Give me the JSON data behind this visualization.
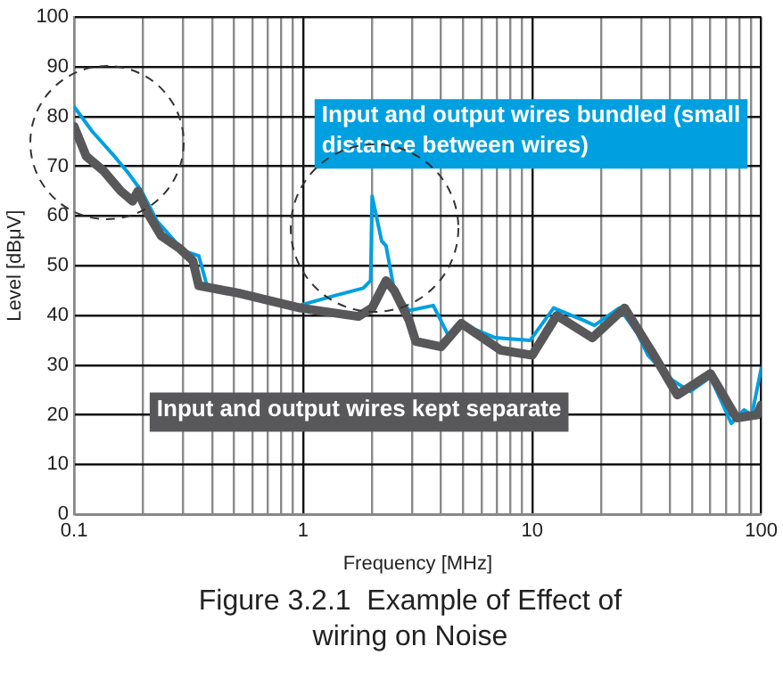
{
  "chart_data": {
    "type": "line",
    "title": "Figure 3.2.1  Example of Effect of wiring on Noise",
    "xlabel": "Frequency [MHz]",
    "ylabel": "Level [dBμV]",
    "log": "x",
    "xlim": [
      0.1,
      100
    ],
    "ylim": [
      0,
      100
    ],
    "xticks": [
      0.1,
      {
        "value": 0.2,
        "label": null
      },
      {
        "value": 0.3,
        "label": null
      },
      {
        "value": 0.4,
        "label": null
      },
      {
        "value": 0.5,
        "label": null
      },
      {
        "value": 0.6,
        "label": null
      },
      {
        "value": 0.7,
        "label": null
      },
      {
        "value": 0.8,
        "label": null
      },
      {
        "value": 0.9,
        "label": null
      },
      1,
      {
        "value": 2,
        "label": null
      },
      {
        "value": 3,
        "label": null
      },
      {
        "value": 4,
        "label": null
      },
      {
        "value": 5,
        "label": null
      },
      {
        "value": 6,
        "label": null
      },
      {
        "value": 7,
        "label": null
      },
      {
        "value": 8,
        "label": null
      },
      {
        "value": 9,
        "label": null
      },
      10,
      {
        "value": 20,
        "label": null
      },
      {
        "value": 30,
        "label": null
      },
      {
        "value": 40,
        "label": null
      },
      {
        "value": 50,
        "label": null
      },
      {
        "value": 60,
        "label": null
      },
      {
        "value": 70,
        "label": null
      },
      {
        "value": 80,
        "label": null
      },
      {
        "value": 90,
        "label": null
      },
      100
    ],
    "yticks": [
      0,
      10,
      20,
      30,
      40,
      50,
      60,
      70,
      80,
      90,
      100
    ],
    "grid": true,
    "legend": false,
    "marker": "none",
    "line_style": "solid",
    "series": [
      {
        "name": "Input and output wires kept separate",
        "color": "#58585a",
        "x": [
          0.1,
          0.113,
          0.135,
          0.16,
          0.18,
          0.19,
          0.21,
          0.24,
          0.29,
          0.33,
          0.35,
          0.52,
          0.97,
          1.74,
          2.0,
          2.3,
          2.5,
          2.9,
          3.1,
          4.0,
          4.9,
          7.3,
          10,
          12.8,
          18.3,
          25.3,
          34,
          43,
          60,
          78,
          96,
          100
        ],
        "values": [
          78,
          72,
          69,
          65,
          63,
          65,
          60.5,
          56,
          53.4,
          51,
          46,
          44.5,
          41.5,
          39.8,
          41.5,
          47,
          45,
          39,
          34.8,
          33.7,
          38.4,
          33,
          32,
          40,
          35.5,
          41.5,
          32,
          24,
          28.3,
          19.4,
          20,
          22
        ]
      },
      {
        "name": "Input and output wires bundled (small distance between wires)",
        "color": "#00a0e0",
        "x": [
          0.1,
          0.12,
          0.15,
          0.17,
          0.197,
          0.23,
          0.3,
          0.35,
          0.38,
          0.52,
          0.96,
          1.38,
          1.83,
          1.97,
          2.0,
          2.2,
          2.3,
          2.5,
          2.9,
          3.7,
          4.3,
          5.1,
          6.9,
          9.8,
          12.4,
          16.8,
          18.7,
          24,
          28.6,
          32,
          40.8,
          49,
          60,
          74,
          84,
          91,
          100
        ],
        "values": [
          82,
          77,
          72,
          69,
          65,
          59,
          53,
          52,
          46,
          45,
          42,
          44,
          45.5,
          47,
          64,
          55,
          54,
          45,
          41,
          42,
          36,
          38,
          35.5,
          35,
          41.5,
          39,
          38,
          41.5,
          36.6,
          32,
          27,
          24.7,
          27.6,
          18.3,
          21,
          20,
          29.4
        ]
      }
    ]
  }
}
